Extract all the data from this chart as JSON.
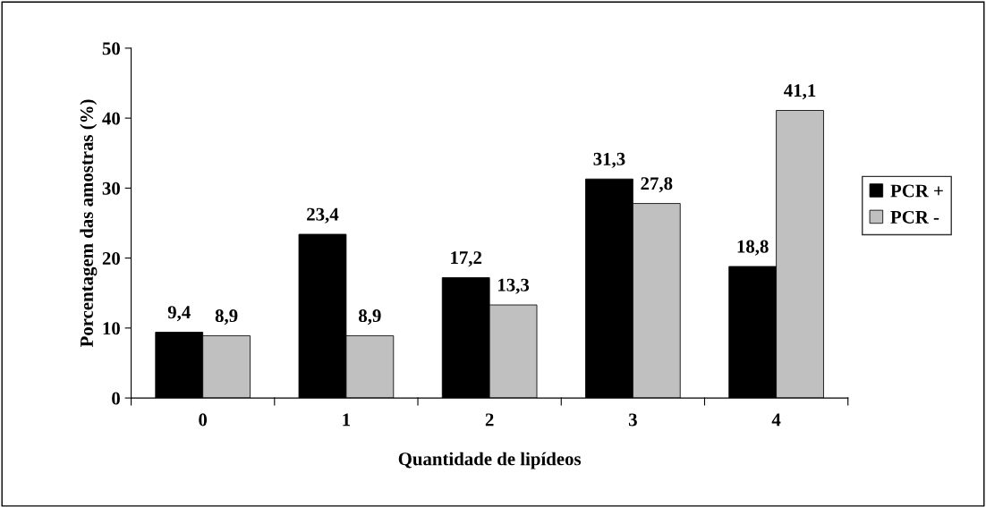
{
  "chart_data": {
    "type": "bar",
    "xlabel": "Quantidade de lipídeos",
    "ylabel": "Porcentagem das amostras (%)",
    "categories": [
      "0",
      "1",
      "2",
      "3",
      "4"
    ],
    "series": [
      {
        "name": "PCR +",
        "color": "#000000",
        "values": [
          9.4,
          23.4,
          17.2,
          31.3,
          18.8
        ],
        "value_labels": [
          "9,4",
          "23,4",
          "17,2",
          "31,3",
          "18,8"
        ]
      },
      {
        "name": "PCR -",
        "color": "#c0c0c0",
        "values": [
          8.9,
          8.9,
          13.3,
          27.8,
          41.1
        ],
        "value_labels": [
          "8,9",
          "8,9",
          "13,3",
          "27,8",
          "41,1"
        ]
      }
    ],
    "ylim": [
      0,
      50
    ],
    "yticks": [
      0,
      10,
      20,
      30,
      40,
      50
    ],
    "grid": false,
    "legend": "right"
  }
}
